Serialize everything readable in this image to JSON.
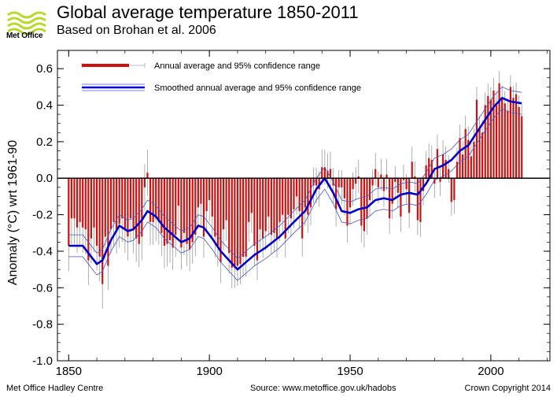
{
  "header": {
    "logo_text": "Met Office",
    "title": "Global average temperature 1850-2011",
    "subtitle": "Based on Brohan et al. 2006"
  },
  "footer": {
    "left": "Met Office Hadley Centre",
    "source": "Source: www.metoffice.gov.uk/hadobs",
    "copyright": "Crown Copyright 2014"
  },
  "colors": {
    "bars": "#cc1111",
    "smooth": "#0000cc",
    "smooth_ci": "#4455cc",
    "errorbars": "#999999",
    "zero_line": "#000000",
    "logo": "#b8d82a"
  },
  "chart_data": {
    "type": "bar",
    "ylabel": "Anomaly (°C) wrt 1961-90",
    "xlim": [
      1846,
      2021
    ],
    "ylim": [
      -1.0,
      0.7
    ],
    "x_ticks": [
      1850,
      1900,
      1950,
      2000
    ],
    "y_ticks": [
      0.6,
      0.4,
      0.2,
      0.0,
      -0.2,
      -0.4,
      -0.6,
      -0.8,
      -1.0
    ],
    "y_tick_labels": [
      "0.6",
      "0.4",
      "0.2",
      "0.0",
      "-0.2",
      "-0.4",
      "-0.6",
      "-0.8",
      "-1.0"
    ],
    "legend": {
      "placement": "top-left",
      "entries": [
        "Annual average and 95% confidence range",
        "Smoothed annual average and 95% confidence range"
      ]
    },
    "years_start": 1850,
    "annual": [
      -0.37,
      -0.22,
      -0.22,
      -0.27,
      -0.24,
      -0.27,
      -0.28,
      -0.45,
      -0.33,
      -0.27,
      -0.37,
      -0.43,
      -0.58,
      -0.32,
      -0.48,
      -0.28,
      -0.24,
      -0.28,
      -0.25,
      -0.22,
      -0.28,
      -0.32,
      -0.22,
      -0.28,
      -0.33,
      -0.36,
      -0.32,
      -0.05,
      0.03,
      -0.24,
      -0.24,
      -0.22,
      -0.24,
      -0.3,
      -0.37,
      -0.36,
      -0.34,
      -0.38,
      -0.31,
      -0.15,
      -0.38,
      -0.3,
      -0.36,
      -0.39,
      -0.35,
      -0.31,
      -0.16,
      -0.14,
      -0.32,
      -0.18,
      -0.12,
      -0.21,
      -0.32,
      -0.37,
      -0.46,
      -0.28,
      -0.23,
      -0.41,
      -0.49,
      -0.49,
      -0.48,
      -0.47,
      -0.43,
      -0.43,
      -0.24,
      -0.19,
      -0.37,
      -0.45,
      -0.28,
      -0.33,
      -0.29,
      -0.21,
      -0.31,
      -0.3,
      -0.33,
      -0.24,
      -0.2,
      -0.33,
      -0.2,
      -0.22,
      -0.17,
      -0.1,
      -0.18,
      -0.33,
      -0.16,
      -0.2,
      -0.16,
      -0.04,
      -0.04,
      -0.06,
      0.06,
      0.06,
      0.04,
      0.05,
      -0.04,
      -0.17,
      -0.05,
      -0.05,
      -0.11,
      -0.26,
      -0.16,
      -0.06,
      -0.03,
      0.01,
      -0.26,
      -0.29,
      -0.22,
      -0.12,
      -0.04,
      0.05,
      -0.05,
      0.02,
      -0.07,
      0.02,
      -0.22,
      -0.14,
      -0.02,
      -0.08,
      -0.21,
      -0.01,
      -0.06,
      -0.19,
      0.09,
      0.01,
      -0.23,
      -0.24,
      -0.07,
      0.07,
      0.11,
      0.1,
      -0.03,
      0.16,
      -0.02,
      0.13,
      0.1,
      0.05,
      -0.13,
      -0.12,
      0.09,
      0.22,
      0.13,
      0.27,
      0.21,
      0.12,
      0.2,
      0.43,
      0.27,
      0.25,
      0.4,
      0.45,
      0.43,
      0.48,
      0.4,
      0.52,
      0.44,
      0.41,
      0.37,
      0.5,
      0.44,
      0.46,
      0.39,
      0.34
    ],
    "smoothed": [
      [
        1850,
        -0.37
      ],
      [
        1855,
        -0.37
      ],
      [
        1858,
        -0.43
      ],
      [
        1860,
        -0.47
      ],
      [
        1862,
        -0.45
      ],
      [
        1865,
        -0.34
      ],
      [
        1868,
        -0.26
      ],
      [
        1871,
        -0.29
      ],
      [
        1873,
        -0.28
      ],
      [
        1876,
        -0.23
      ],
      [
        1878,
        -0.18
      ],
      [
        1881,
        -0.21
      ],
      [
        1884,
        -0.27
      ],
      [
        1887,
        -0.31
      ],
      [
        1890,
        -0.35
      ],
      [
        1893,
        -0.33
      ],
      [
        1896,
        -0.26
      ],
      [
        1898,
        -0.27
      ],
      [
        1901,
        -0.33
      ],
      [
        1904,
        -0.4
      ],
      [
        1907,
        -0.45
      ],
      [
        1910,
        -0.5
      ],
      [
        1913,
        -0.46
      ],
      [
        1916,
        -0.42
      ],
      [
        1920,
        -0.38
      ],
      [
        1925,
        -0.32
      ],
      [
        1930,
        -0.24
      ],
      [
        1934,
        -0.18
      ],
      [
        1938,
        -0.06
      ],
      [
        1941,
        0.0
      ],
      [
        1944,
        -0.08
      ],
      [
        1947,
        -0.18
      ],
      [
        1950,
        -0.19
      ],
      [
        1953,
        -0.17
      ],
      [
        1956,
        -0.16
      ],
      [
        1959,
        -0.12
      ],
      [
        1962,
        -0.11
      ],
      [
        1965,
        -0.12
      ],
      [
        1968,
        -0.09
      ],
      [
        1971,
        -0.08
      ],
      [
        1974,
        -0.09
      ],
      [
        1977,
        -0.03
      ],
      [
        1980,
        0.05
      ],
      [
        1983,
        0.07
      ],
      [
        1986,
        0.1
      ],
      [
        1989,
        0.15
      ],
      [
        1992,
        0.18
      ],
      [
        1995,
        0.25
      ],
      [
        1998,
        0.32
      ],
      [
        2001,
        0.39
      ],
      [
        2004,
        0.44
      ],
      [
        2007,
        0.42
      ],
      [
        2011,
        0.41
      ]
    ],
    "smoothed_ci_halfwidth": 0.06,
    "annual_ci_halfwidth": 0.14
  }
}
